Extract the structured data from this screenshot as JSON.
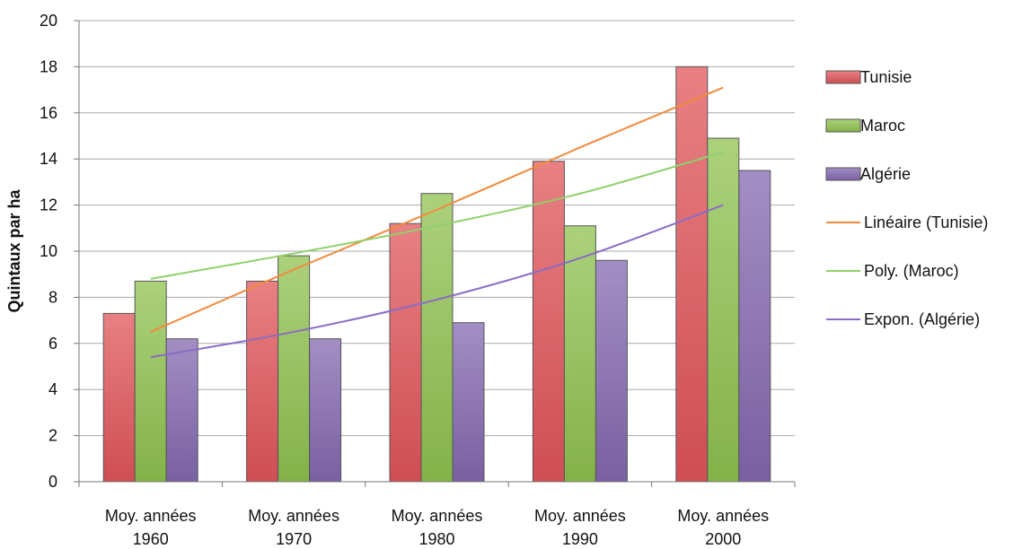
{
  "chart_data": {
    "type": "bar",
    "title": "",
    "xlabel": "",
    "ylabel": "Quintaux par ha",
    "ylim": [
      0,
      20
    ],
    "yticks": [
      0,
      2,
      4,
      6,
      8,
      10,
      12,
      14,
      16,
      18,
      20
    ],
    "grid": true,
    "legend_position": "right",
    "categories": [
      [
        "Moy. années",
        "1960"
      ],
      [
        "Moy. années",
        "1970"
      ],
      [
        "Moy. années",
        "1980"
      ],
      [
        "Moy. années",
        "1990"
      ],
      [
        "Moy. années",
        "2000"
      ]
    ],
    "series": [
      {
        "name": "Tunisie",
        "values": [
          7.3,
          8.7,
          11.2,
          13.9,
          18.0
        ],
        "color": "#e0555a"
      },
      {
        "name": "Maroc",
        "values": [
          8.7,
          9.8,
          12.5,
          11.1,
          14.9
        ],
        "color": "#8fc24f"
      },
      {
        "name": "Algérie",
        "values": [
          6.2,
          6.2,
          6.9,
          9.6,
          13.5
        ],
        "color": "#8468b0"
      }
    ],
    "trendlines": [
      {
        "name": "Linéaire (Tunisie)",
        "type": "linear",
        "values": [
          6.5,
          9.2,
          11.8,
          14.5,
          17.1
        ],
        "color": "#f28a3c"
      },
      {
        "name": "Poly. (Maroc)",
        "type": "polynomial",
        "values": [
          8.8,
          9.9,
          11.1,
          12.5,
          14.3
        ],
        "color": "#8fd06a"
      },
      {
        "name": "Expon. (Algérie)",
        "type": "exponential",
        "values": [
          5.4,
          6.5,
          7.9,
          9.7,
          12.0
        ],
        "color": "#8a6cc4"
      }
    ]
  }
}
